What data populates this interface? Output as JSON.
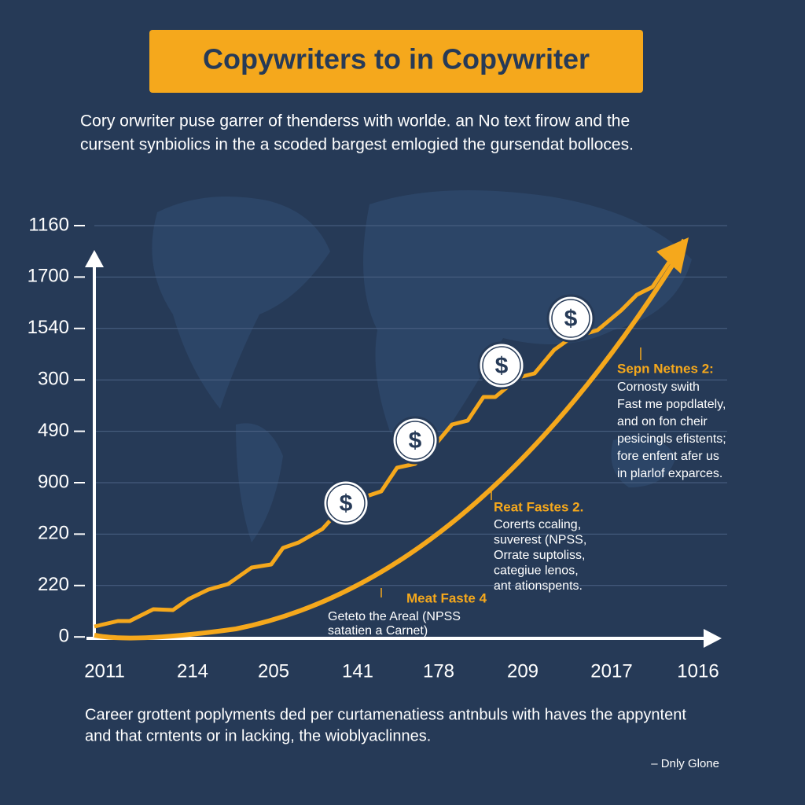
{
  "title": "Copywriters to in Copywriter",
  "subtitle": [
    "Cory orwriter puse garrer of thenderss with worlde. an No text firow and the",
    "cursent synbiolics in the a scoded bargest emlogied the gursendat bolloces."
  ],
  "y_axis_labels": [
    "1160",
    "1700",
    "1540",
    "300",
    "490",
    "900",
    "220",
    "220",
    "0"
  ],
  "x_axis_labels": [
    "2011",
    "214",
    "205",
    "141",
    "178",
    "209",
    "2017",
    "1016"
  ],
  "coins": [
    "$",
    "$",
    "$",
    "$"
  ],
  "annotations": [
    {
      "heading": "Sepn Netnes 2:",
      "lines": [
        "Cornosty swith",
        "Fast me popdlately,",
        "and on fon cheir",
        "pesicingls efistents;",
        "fore enfent afer us",
        "in plarlof exparces."
      ]
    },
    {
      "heading": "Reat Fastes 2.",
      "lines": [
        "Corerts ccaling,",
        "suverest (NPSS,",
        "Orrate suptoliss,",
        "categiue lenos,",
        "ant ationspents."
      ]
    },
    {
      "heading": "Meat Faste 4",
      "lines": [
        "Geteto the Areal (NPSS",
        "satatien a Carnet)"
      ]
    }
  ],
  "footer": [
    "Career grottent poplyments ded per curtamenatiess antnbuls with haves the appyntent",
    "and that crntents or in lacking, the wioblyaclinnes."
  ],
  "credit": "– Dnly Glone"
}
